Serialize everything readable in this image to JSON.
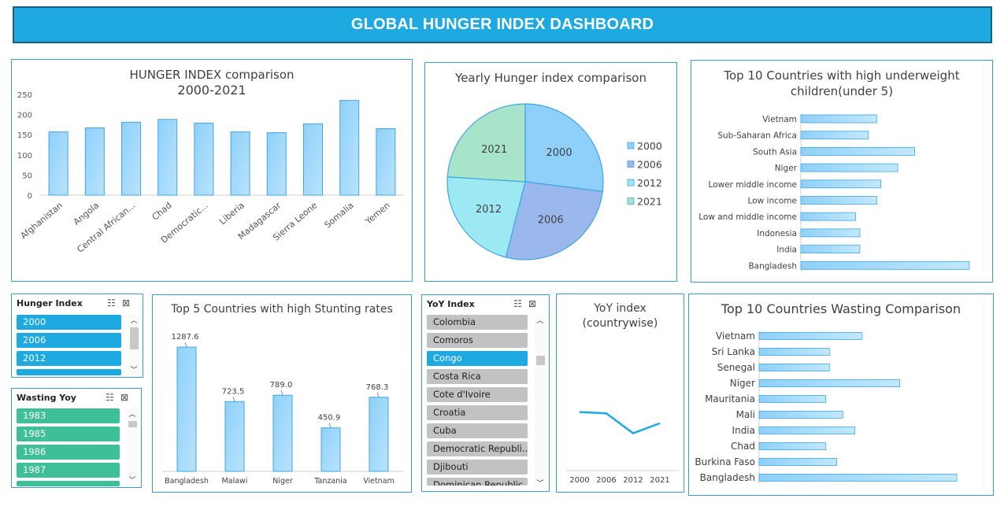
{
  "header": {
    "title": "GLOBAL HUNGER INDEX DASHBOARD"
  },
  "charts": {
    "hunger": {
      "title1": "HUNGER INDEX comparison",
      "title2": "2000-2021"
    },
    "yearly": {
      "title": "Yearly Hunger index comparison"
    },
    "underweight": {
      "title1": "Top 10 Countries with high underweight",
      "title2": "children(under 5)"
    },
    "stunting": {
      "title": "Top 5 Countries with high Stunting rates"
    },
    "yoy": {
      "title1": "YoY index",
      "title2": "(countrywise)"
    },
    "wasting": {
      "title": "Top 10 Countries Wasting Comparison"
    }
  },
  "chart_data": [
    {
      "type": "bar",
      "title": "HUNGER INDEX comparison 2000-2021",
      "categories": [
        "Afghanistan",
        "Angola",
        "Central African...",
        "Chad",
        "Democratic...",
        "Liberia",
        "Madagascar",
        "Sierra Leone",
        "Somalia",
        "Yemen"
      ],
      "values": [
        157,
        167,
        181,
        188,
        179,
        157,
        155,
        177,
        235,
        165
      ],
      "ylim": [
        0,
        250
      ],
      "yticks": [
        0,
        50,
        100,
        150,
        200,
        250
      ],
      "grid": false
    },
    {
      "type": "pie",
      "title": "Yearly Hunger index comparison",
      "labels": [
        "2000",
        "2006",
        "2012",
        "2021"
      ],
      "values": [
        27,
        27,
        22,
        24
      ],
      "colors": [
        "#8fd0fa",
        "#9ab8ec",
        "#9ce9f3",
        "#a8e4c9"
      ],
      "legend": "right"
    },
    {
      "type": "bar",
      "orientation": "horizontal",
      "title": "Top 10 Countries with high underweight children(under 5)",
      "categories": [
        "Vietnam",
        "Sub-Saharan Africa",
        "South Asia",
        "Niger",
        "Lower middle income",
        "Low income",
        "Low and middle income",
        "Indonesia",
        "India",
        "Bangladesh"
      ],
      "values": [
        18,
        16,
        27,
        23,
        19,
        18,
        13,
        14,
        14,
        40
      ],
      "xlim": [
        0,
        40
      ]
    },
    {
      "type": "bar",
      "title": "Top 5 Countries with high Stunting rates",
      "categories": [
        "Bangladesh",
        "Malawi",
        "Niger",
        "Tanzania",
        "Vietnam"
      ],
      "values": [
        1287.6,
        723.5,
        789.0,
        450.9,
        768.3
      ],
      "value_labels": [
        "1287.6",
        "723.5",
        "789.0",
        "450.9",
        "768.3"
      ],
      "ylim": [
        0,
        1400
      ]
    },
    {
      "type": "line",
      "title": "YoY index (countrywise)",
      "categories": [
        "2000",
        "2006",
        "2012",
        "2021"
      ],
      "values": [
        47,
        46,
        30,
        38
      ],
      "ylim": [
        0,
        110
      ],
      "color": "#1ea9e0"
    },
    {
      "type": "bar",
      "orientation": "horizontal",
      "title": "Top 10 Countries Wasting Comparison",
      "categories": [
        "Vietnam",
        "Sri Lanka",
        "Senegal",
        "Niger",
        "Mauritania",
        "Mali",
        "India",
        "Chad",
        "Burkina Faso",
        "Bangladesh"
      ],
      "values": [
        8.5,
        5.8,
        5.8,
        11.6,
        5.5,
        6.9,
        7.9,
        5.5,
        6.4,
        16.3
      ],
      "xlim": [
        0,
        16.3
      ]
    }
  ],
  "slicers": {
    "hunger": {
      "title": "Hunger Index",
      "items": [
        "2000",
        "2006",
        "2012"
      ]
    },
    "wasting": {
      "title": "Wasting Yoy",
      "items": [
        "1983",
        "1985",
        "1986",
        "1987"
      ]
    },
    "yoy": {
      "title": "YoY Index",
      "items": [
        "Colombia",
        "Comoros",
        "Congo",
        "Costa Rica",
        "Cote d'Ivoire",
        "Croatia",
        "Cuba",
        "Democratic Republi...",
        "Djibouti",
        "Dominican Republic"
      ],
      "selected": "Congo"
    }
  },
  "icons": {
    "multiselect": "multiselect-icon",
    "clear": "clear-filter-icon",
    "up": "scroll-up-icon",
    "down": "scroll-down-icon"
  }
}
